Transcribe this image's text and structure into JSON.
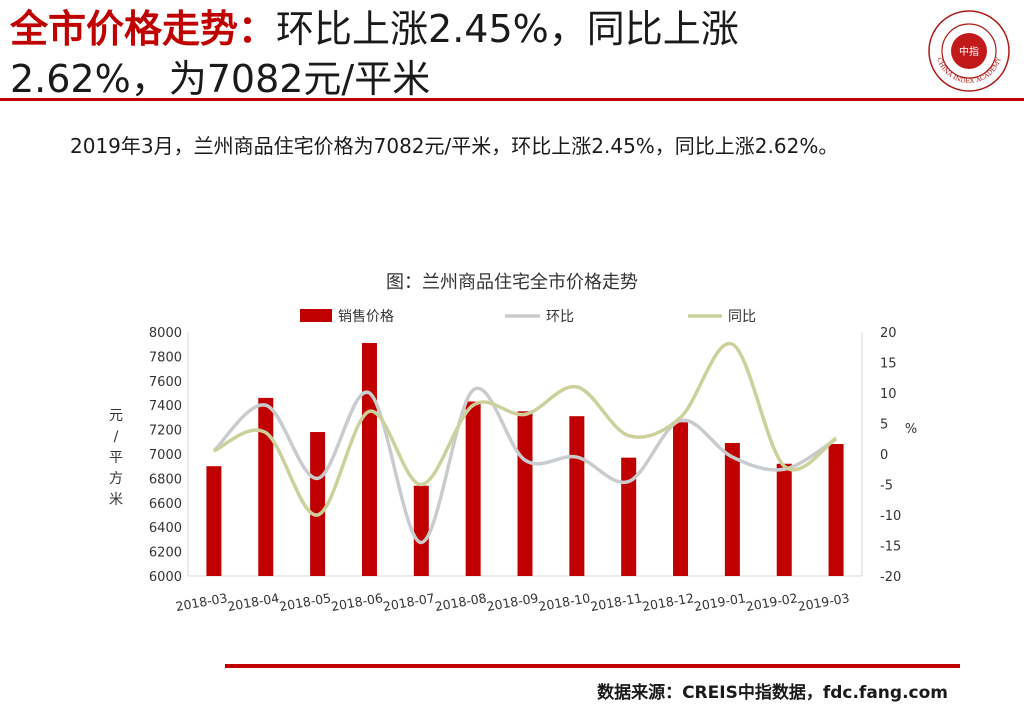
{
  "header": {
    "title_highlight": "全市价格走势：",
    "title_rest": "环比上涨2.45%，同比上涨",
    "title_line2": "2.62%，为7082元/平米"
  },
  "logo": {
    "center_char": "中指",
    "ring_text": "CHINA INDEX ACADEMY"
  },
  "summary": "2019年3月，兰州商品住宅价格为7082元/平米，环比上涨2.45%，同比上涨2.62%。",
  "chart_title": "图：兰州商品住宅全市价格走势",
  "source": "数据来源：CREIS中指数据，fdc.fang.com",
  "colors": {
    "accent": "#c00000",
    "bar": "#c00000",
    "mom_line": "#c8ccce",
    "yoy_line": "#ccd09a"
  },
  "chart_data": {
    "type": "bar",
    "title": "图：兰州商品住宅全市价格走势",
    "categories": [
      "2018-03",
      "2018-04",
      "2018-05",
      "2018-06",
      "2018-07",
      "2018-08",
      "2018-09",
      "2018-10",
      "2018-11",
      "2018-12",
      "2019-01",
      "2019-02",
      "2019-03"
    ],
    "series": [
      {
        "name": "销售价格",
        "type": "bar",
        "axis": "left",
        "values": [
          6900,
          7460,
          7180,
          7910,
          6740,
          7430,
          7350,
          7310,
          6970,
          7260,
          7090,
          6920,
          7082
        ]
      },
      {
        "name": "环比",
        "type": "line",
        "axis": "right",
        "values": [
          0.5,
          8,
          -4,
          10,
          -14.5,
          10.5,
          -1,
          -0.5,
          -4.5,
          5.5,
          -0.5,
          -2.5,
          2.45
        ]
      },
      {
        "name": "同比",
        "type": "line",
        "axis": "right",
        "values": [
          0.5,
          3.5,
          -10,
          7,
          -5,
          8,
          6.5,
          11,
          3,
          6,
          18,
          -2,
          2.62
        ]
      }
    ],
    "ylabel": "元/平方米",
    "y2label": "%",
    "ylim": [
      6000,
      8000
    ],
    "yticks": [
      6000,
      6200,
      6400,
      6600,
      6800,
      7000,
      7200,
      7400,
      7600,
      7800,
      8000
    ],
    "y2lim": [
      -20,
      20
    ],
    "y2ticks": [
      -20,
      -15,
      -10,
      -5,
      0,
      5,
      10,
      15,
      20
    ],
    "legend_position": "top",
    "grid": false
  }
}
